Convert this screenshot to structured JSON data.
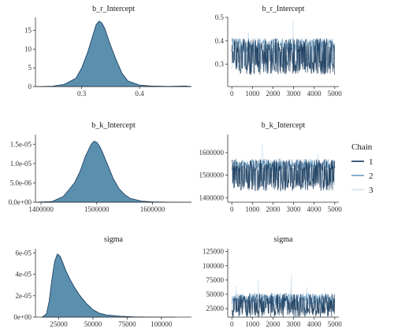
{
  "chart_data": [
    {
      "type": "area",
      "title": "b_r_Intercept",
      "x_range": [
        0.22,
        0.49
      ],
      "ylim": [
        0,
        18.5
      ],
      "x_ticks": [
        {
          "v": 0.3,
          "label": "0.3"
        },
        {
          "v": 0.4,
          "label": "0.4"
        }
      ],
      "y_ticks": [
        {
          "v": 0,
          "label": "0"
        },
        {
          "v": 5,
          "label": "5"
        },
        {
          "v": 10,
          "label": "10"
        },
        {
          "v": 15,
          "label": "15"
        }
      ],
      "density": {
        "x": [
          0.22,
          0.25,
          0.27,
          0.29,
          0.3,
          0.31,
          0.32,
          0.325,
          0.33,
          0.335,
          0.34,
          0.35,
          0.36,
          0.37,
          0.38,
          0.4,
          0.42,
          0.45,
          0.48,
          0.49
        ],
        "y": [
          0,
          0.1,
          0.6,
          2.2,
          5,
          9,
          14,
          16.5,
          17.5,
          17,
          15.5,
          11,
          7,
          3.5,
          1.5,
          0.4,
          0.15,
          0.05,
          0.15,
          0
        ]
      }
    },
    {
      "type": "line",
      "title": "b_r_Intercept",
      "xlim": [
        -200,
        5200
      ],
      "ylim": [
        0.205,
        0.5
      ],
      "x_ticks": [
        {
          "v": 0,
          "label": "0"
        },
        {
          "v": 1000,
          "label": "1000"
        },
        {
          "v": 2000,
          "label": "2000"
        },
        {
          "v": 3000,
          "label": "3000"
        },
        {
          "v": 4000,
          "label": "4000"
        },
        {
          "v": 5000,
          "label": "5000"
        }
      ],
      "y_ticks": [
        {
          "v": 0.3,
          "label": "0.3"
        },
        {
          "v": 0.4,
          "label": "0.4"
        },
        {
          "v": 0.5,
          "label": "0.5"
        }
      ],
      "bands": [
        {
          "center": 0.38,
          "spread": 0.03
        },
        {
          "center": 0.285,
          "spread": 0.028
        }
      ],
      "chains": [
        "1",
        "2",
        "3"
      ],
      "mean": 0.33
    },
    {
      "type": "area",
      "title": "b_k_Intercept",
      "x_range": [
        1390000,
        1670000
      ],
      "ylim": [
        0,
        1.75e-05
      ],
      "x_ticks": [
        {
          "v": 1400000,
          "label": "1400000"
        },
        {
          "v": 1500000,
          "label": "1500000"
        },
        {
          "v": 1600000,
          "label": "1600000"
        }
      ],
      "y_ticks": [
        {
          "v": 0,
          "label": "0.0e+00"
        },
        {
          "v": 5e-06,
          "label": "5.0e-06"
        },
        {
          "v": 1e-05,
          "label": "1.0e-05"
        },
        {
          "v": 1.5e-05,
          "label": "1.5e-05"
        }
      ],
      "density": {
        "x": [
          1390000,
          1420000,
          1440000,
          1460000,
          1470000,
          1480000,
          1490000,
          1495000,
          1500000,
          1505000,
          1510000,
          1520000,
          1530000,
          1540000,
          1550000,
          1560000,
          1580000,
          1600000,
          1640000,
          1670000
        ],
        "y": [
          0,
          2e-07,
          1.5e-06,
          5e-06,
          8e-06,
          1.2e-05,
          1.5e-05,
          1.58e-05,
          1.55e-05,
          1.45e-05,
          1.3e-05,
          9.5e-06,
          6e-06,
          3.5e-06,
          2e-06,
          1e-06,
          3e-07,
          1e-07,
          0,
          0
        ]
      }
    },
    {
      "type": "line",
      "title": "b_k_Intercept",
      "xlim": [
        -200,
        5200
      ],
      "ylim": [
        1380000,
        1680000
      ],
      "x_ticks": [
        {
          "v": 0,
          "label": "0"
        },
        {
          "v": 1000,
          "label": "1000"
        },
        {
          "v": 2000,
          "label": "2000"
        },
        {
          "v": 3000,
          "label": "3000"
        },
        {
          "v": 4000,
          "label": "4000"
        },
        {
          "v": 5000,
          "label": "5000"
        }
      ],
      "y_ticks": [
        {
          "v": 1400000,
          "label": "1400000"
        },
        {
          "v": 1500000,
          "label": "1500000"
        },
        {
          "v": 1600000,
          "label": "1600000"
        }
      ],
      "bands": [
        {
          "center": 1545000,
          "spread": 25000
        },
        {
          "center": 1455000,
          "spread": 22000
        }
      ],
      "chains": [
        "1",
        "2",
        "3"
      ],
      "mean": 1500000
    },
    {
      "type": "area",
      "title": "sigma",
      "x_range": [
        8000,
        122000
      ],
      "ylim": [
        0,
        6.4e-05
      ],
      "x_ticks": [
        {
          "v": 25000,
          "label": "25000"
        },
        {
          "v": 50000,
          "label": "50000"
        },
        {
          "v": 75000,
          "label": "75000"
        },
        {
          "v": 100000,
          "label": "100000"
        }
      ],
      "y_ticks": [
        {
          "v": 0,
          "label": "0e+00"
        },
        {
          "v": 2e-05,
          "label": "2e-05"
        },
        {
          "v": 4e-05,
          "label": "4e-05"
        },
        {
          "v": 6e-05,
          "label": "6e-05"
        }
      ],
      "density": {
        "x": [
          13000,
          16000,
          18000,
          20000,
          22000,
          24000,
          26000,
          28000,
          30000,
          33000,
          36000,
          40000,
          45000,
          50000,
          55000,
          60000,
          70000,
          80000,
          90000,
          110000
        ],
        "y": [
          0,
          3e-06,
          1.5e-05,
          3.5e-05,
          5.2e-05,
          5.9e-05,
          5.7e-05,
          5.1e-05,
          4.4e-05,
          3.6e-05,
          2.9e-05,
          2.1e-05,
          1.3e-05,
          7e-06,
          3.5e-06,
          2e-06,
          8e-07,
          3e-07,
          1e-07,
          0
        ]
      }
    },
    {
      "type": "line",
      "title": "sigma",
      "xlim": [
        -200,
        5200
      ],
      "ylim": [
        10000,
        130000
      ],
      "x_ticks": [
        {
          "v": 0,
          "label": "0"
        },
        {
          "v": 1000,
          "label": "1000"
        },
        {
          "v": 2000,
          "label": "2000"
        },
        {
          "v": 3000,
          "label": "3000"
        },
        {
          "v": 4000,
          "label": "4000"
        },
        {
          "v": 5000,
          "label": "5000"
        }
      ],
      "y_ticks": [
        {
          "v": 25000,
          "label": "25000"
        },
        {
          "v": 50000,
          "label": "50000"
        },
        {
          "v": 75000,
          "label": "75000"
        },
        {
          "v": 100000,
          "label": "100000"
        },
        {
          "v": 125000,
          "label": "125000"
        }
      ],
      "bands": [
        {
          "center": 42000,
          "spread": 9000
        },
        {
          "center": 18000,
          "spread": 2500
        }
      ],
      "chains": [
        "1",
        "2",
        "3"
      ],
      "mean": 35000
    }
  ],
  "legend": {
    "title": "Chain",
    "items": [
      {
        "label": "1",
        "color": "#16375a"
      },
      {
        "label": "2",
        "color": "#6a9bbf"
      },
      {
        "label": "3",
        "color": "#d2e2ee"
      }
    ]
  },
  "colors": {
    "density_fill": "#5b8fae",
    "density_stroke": "#16375a"
  }
}
